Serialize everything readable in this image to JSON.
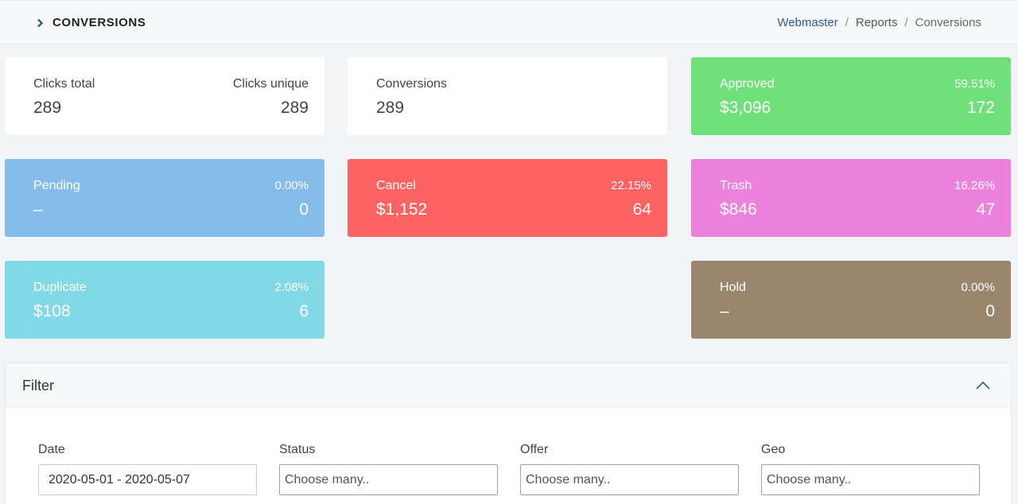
{
  "header": {
    "title": "CONVERSIONS",
    "breadcrumb": [
      "Webmaster",
      "Reports",
      "Conversions"
    ]
  },
  "cards": {
    "clicks": {
      "total_label": "Clicks total",
      "total_value": "289",
      "unique_label": "Clicks unique",
      "unique_value": "289"
    },
    "conversions": {
      "label": "Conversions",
      "value": "289"
    },
    "approved": {
      "label": "Approved",
      "percent": "59.51%",
      "amount": "$3,096",
      "count": "172",
      "color": "#6fe07a"
    },
    "pending": {
      "label": "Pending",
      "percent": "0.00%",
      "amount": "–",
      "count": "0",
      "color": "#84bde9"
    },
    "cancel": {
      "label": "Cancel",
      "percent": "22.15%",
      "amount": "$1,152",
      "count": "64",
      "color": "#fd6363"
    },
    "trash": {
      "label": "Trash",
      "percent": "16.26%",
      "amount": "$846",
      "count": "47",
      "color": "#ed82dc"
    },
    "duplicate": {
      "label": "Duplicate",
      "percent": "2.08%",
      "amount": "$108",
      "count": "6",
      "color": "#80d9e5"
    },
    "hold": {
      "label": "Hold",
      "percent": "0.00%",
      "amount": "–",
      "count": "0",
      "color": "#9a866c"
    }
  },
  "filter": {
    "title": "Filter",
    "collapse_icon": "chevron-up-icon",
    "fields": {
      "date": {
        "label": "Date",
        "value": "2020-05-01 - 2020-05-07"
      },
      "status": {
        "label": "Status",
        "placeholder": "Choose many.."
      },
      "offer": {
        "label": "Offer",
        "placeholder": "Choose many.."
      },
      "geo": {
        "label": "Geo",
        "placeholder": "Choose many.."
      }
    }
  }
}
